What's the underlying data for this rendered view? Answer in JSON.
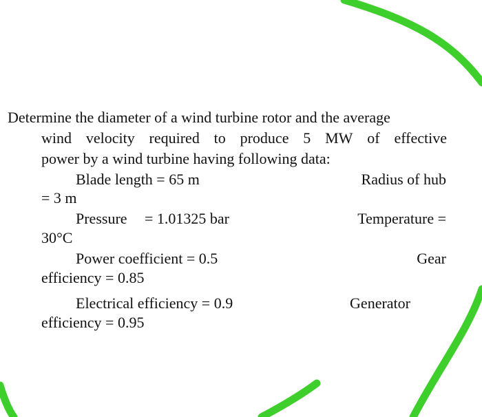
{
  "colors": {
    "marker_green": "#3fcf2c",
    "text": "#111111",
    "background": "#ffffff"
  },
  "problem": {
    "intro_line_1": "Determine the diameter of a wind turbine rotor and the average",
    "intro_line_2_words": [
      "wind",
      "velocity",
      "required",
      "to",
      "produce",
      "5",
      "MW",
      "of",
      "effective"
    ],
    "intro_line_3": "power by a wind turbine having following data:",
    "blade_length": "Blade length = 65 m",
    "radius_of_hub_label": "Radius of hub",
    "radius_of_hub_value": "= 3 m",
    "pressure": "Pressure",
    "pressure_value": "= 1.01325 bar",
    "temperature_label": "Temperature =",
    "temperature_value": "30°C",
    "power_coefficient": "Power coefficient = 0.5",
    "gear_label": "Gear",
    "gear_value": "efficiency = 0.85",
    "electrical_efficiency": "Electrical efficiency = 0.9",
    "generator_label": "Generator",
    "generator_value": "efficiency = 0.95"
  }
}
